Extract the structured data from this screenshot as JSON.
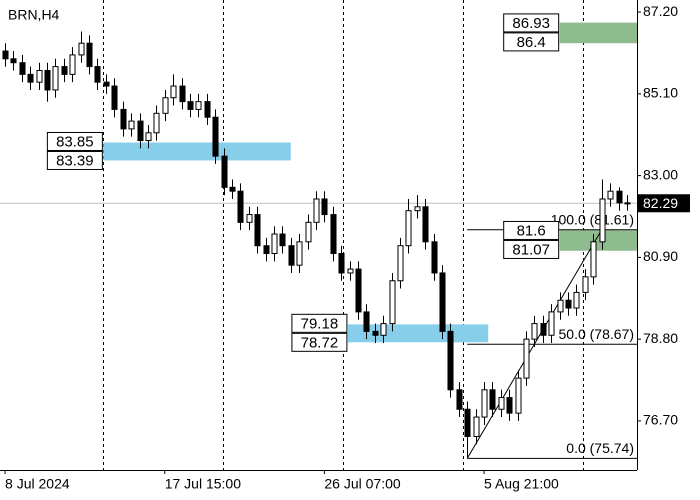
{
  "chart_data": {
    "type": "candlestick",
    "title": "BRN,H4",
    "ylim": [
      75.44,
      87.51
    ],
    "yticks": [
      {
        "value": 87.2,
        "label": "87.20"
      },
      {
        "value": 85.1,
        "label": "85.10"
      },
      {
        "value": 83,
        "label": "83.00"
      },
      {
        "value": 80.9,
        "label": "80.90"
      },
      {
        "value": 78.8,
        "label": "78.80"
      },
      {
        "value": 76.7,
        "label": "76.70"
      }
    ],
    "xlim": [
      -0.6,
      75.2
    ],
    "xticks": [
      {
        "value": 0,
        "label": "8 Jul 2024"
      },
      {
        "value": 19,
        "label": "17 Jul 15:00"
      },
      {
        "value": 38,
        "label": "26 Jul 07:00"
      },
      {
        "value": 57,
        "label": "5 Aug 21:00"
      }
    ],
    "open": [
      86.2,
      86.0,
      85.9,
      85.6,
      85.4,
      85.7,
      85.2,
      85.8,
      85.6,
      86.1,
      86.4,
      85.8,
      85.4,
      85.3,
      84.7,
      84.2,
      84.4,
      83.9,
      84.1,
      84.6,
      85.0,
      85.3,
      84.9,
      84.7,
      84.9,
      84.5,
      83.5,
      82.7,
      82.6,
      81.8,
      82.0,
      81.2,
      81.0,
      81.5,
      81.2,
      80.7,
      81.3,
      81.8,
      82.4,
      82.0,
      81.0,
      80.5,
      80.6,
      79.5,
      79.0,
      78.9,
      79.2,
      80.3,
      81.2,
      82.1,
      82.2,
      81.3,
      80.5,
      79.0,
      77.5,
      77.0,
      76.3,
      76.8,
      77.5,
      77.0,
      77.3,
      76.9,
      77.8,
      78.8,
      79.2,
      78.9,
      79.5,
      79.8,
      79.6,
      80.0,
      80.4,
      81.3,
      82.4,
      82.6,
      82.3
    ],
    "high": [
      86.4,
      86.2,
      86.1,
      85.8,
      85.9,
      85.9,
      86.0,
      86.0,
      86.3,
      86.7,
      86.6,
      86.0,
      85.6,
      85.5,
      84.9,
      84.6,
      84.6,
      84.3,
      84.8,
      85.2,
      85.6,
      85.5,
      85.1,
      85.1,
      85.1,
      84.7,
      83.7,
      82.9,
      82.8,
      82.2,
      82.2,
      81.4,
      81.7,
      81.7,
      81.4,
      81.5,
      82.0,
      82.6,
      82.6,
      82.2,
      81.2,
      80.8,
      80.8,
      79.7,
      79.2,
      79.4,
      80.5,
      81.4,
      82.4,
      82.5,
      82.4,
      81.5,
      80.7,
      79.2,
      77.7,
      77.2,
      77.0,
      77.7,
      77.7,
      77.5,
      77.5,
      78.0,
      79.0,
      79.4,
      79.4,
      79.7,
      80.0,
      80.0,
      80.2,
      80.6,
      81.5,
      82.9,
      82.8,
      82.7,
      82.5
    ],
    "low": [
      85.8,
      85.7,
      85.4,
      85.2,
      85.2,
      84.9,
      85.0,
      85.4,
      85.4,
      85.9,
      85.6,
      85.2,
      85.1,
      84.5,
      84.0,
      84.0,
      83.7,
      83.7,
      83.9,
      84.4,
      84.8,
      84.7,
      84.5,
      84.5,
      84.3,
      83.3,
      82.5,
      82.4,
      81.6,
      81.6,
      81.0,
      80.8,
      80.8,
      81.0,
      80.5,
      80.5,
      81.1,
      81.6,
      81.8,
      80.8,
      80.3,
      80.3,
      79.3,
      78.8,
      78.7,
      78.7,
      79.0,
      80.1,
      81.0,
      81.9,
      81.1,
      80.3,
      78.8,
      77.3,
      76.8,
      75.74,
      76.1,
      76.6,
      76.8,
      76.8,
      76.7,
      76.7,
      77.6,
      78.6,
      78.7,
      78.7,
      79.3,
      79.4,
      79.4,
      79.8,
      80.2,
      81.1,
      82.2,
      82.1,
      82.1
    ],
    "close": [
      86.0,
      85.9,
      85.6,
      85.4,
      85.7,
      85.2,
      85.8,
      85.6,
      86.1,
      86.4,
      85.8,
      85.4,
      85.3,
      84.7,
      84.2,
      84.4,
      83.9,
      84.1,
      84.6,
      85.0,
      85.3,
      84.9,
      84.7,
      84.9,
      84.5,
      83.5,
      82.7,
      82.6,
      81.8,
      82.0,
      81.2,
      81.0,
      81.5,
      81.2,
      80.7,
      81.3,
      81.8,
      82.4,
      82.0,
      81.0,
      80.5,
      80.6,
      79.5,
      79.0,
      78.9,
      79.2,
      80.3,
      81.2,
      82.1,
      82.2,
      81.3,
      80.5,
      79.0,
      77.5,
      77.0,
      76.3,
      76.8,
      77.5,
      77.0,
      77.3,
      76.9,
      77.8,
      78.8,
      79.2,
      78.9,
      79.5,
      79.8,
      79.6,
      80.0,
      80.4,
      81.3,
      82.4,
      82.6,
      82.3,
      82.29
    ],
    "last_price": 82.29,
    "zones": [
      {
        "upper": 86.93,
        "lower": 86.4,
        "from": 66,
        "to": 75.2,
        "color": "#8fbc8f"
      },
      {
        "upper": 83.85,
        "lower": 83.39,
        "from": 11.7,
        "to": 34,
        "color": "#87ceeb"
      },
      {
        "upper": 81.6,
        "lower": 81.07,
        "from": 66,
        "to": 75.2,
        "color": "#8fbc8f"
      },
      {
        "upper": 79.18,
        "lower": 78.72,
        "from": 40.8,
        "to": 57.5,
        "color": "#87ceeb"
      }
    ],
    "fibonacci": {
      "from": 55,
      "to": 71,
      "levels": [
        {
          "value": 81.61,
          "label": "100.0 (81.61)"
        },
        {
          "value": 78.67,
          "label": "50.0 (78.67)"
        },
        {
          "value": 75.74,
          "label": "0.0 (75.74)"
        }
      ]
    }
  }
}
